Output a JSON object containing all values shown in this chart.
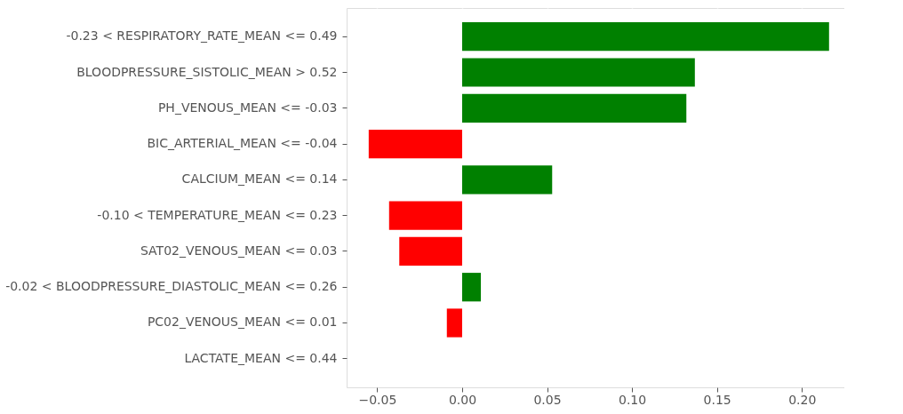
{
  "chart_data": {
    "type": "bar",
    "orientation": "horizontal",
    "categories": [
      "-0.23 < RESPIRATORY_RATE_MEAN <= 0.49",
      "BLOODPRESSURE_SISTOLIC_MEAN > 0.52",
      "PH_VENOUS_MEAN <= -0.03",
      "BIC_ARTERIAL_MEAN <= -0.04",
      "CALCIUM_MEAN <= 0.14",
      "-0.10 < TEMPERATURE_MEAN <= 0.23",
      "SAT02_VENOUS_MEAN <= 0.03",
      "-0.02 < BLOODPRESSURE_DIASTOLIC_MEAN <= 0.26",
      "PC02_VENOUS_MEAN <= 0.01",
      "LACTATE_MEAN <= 0.44"
    ],
    "values": [
      0.216,
      0.137,
      0.132,
      -0.055,
      0.053,
      -0.043,
      -0.037,
      0.011,
      -0.009,
      0
    ],
    "colors": [
      "#008000",
      "#008000",
      "#008000",
      "#ff0000",
      "#008000",
      "#ff0000",
      "#ff0000",
      "#008000",
      "#ff0000",
      "#008000"
    ],
    "xlim": [
      -0.068,
      0.225
    ],
    "xticks": [
      {
        "value": -0.05,
        "label": "−0.05"
      },
      {
        "value": 0,
        "label": "0.00"
      },
      {
        "value": 0.05,
        "label": "0.05"
      },
      {
        "value": 0.1,
        "label": "0.10"
      },
      {
        "value": 0.15,
        "label": "0.15"
      },
      {
        "value": 0.2,
        "label": "0.20"
      }
    ],
    "grid": true
  }
}
